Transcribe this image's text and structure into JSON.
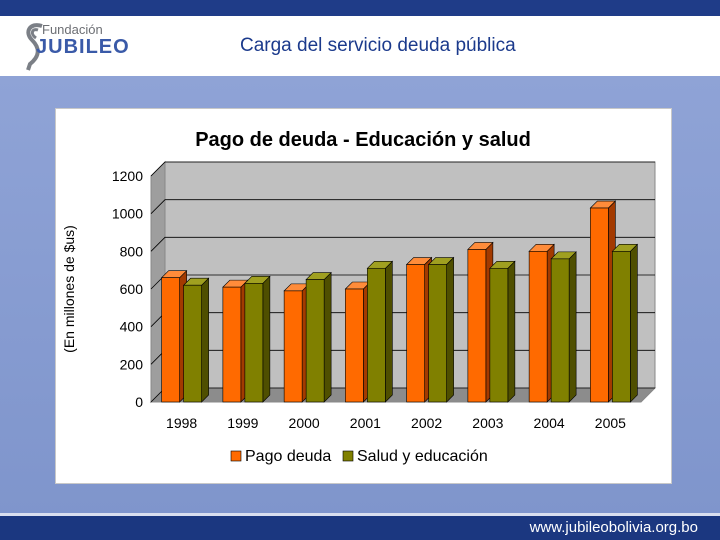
{
  "header": {
    "logo_small": "Fundación",
    "logo_big": "JUBILEO",
    "slide_title": "Carga del servicio deuda pública"
  },
  "footer": {
    "url": "www.jubileobolivia.org.bo"
  },
  "colors": {
    "series1": "#ff6a00",
    "series1_side": "#a33a00",
    "series2": "#808000",
    "series2_side": "#4f4f00",
    "plot_bg": "#c0c0c0",
    "topbar": "#1f3c88"
  },
  "chart_data": {
    "type": "bar",
    "title": "Pago de deuda - Educación y salud",
    "ylabel": "(En millones de $us)",
    "xlabel": "",
    "categories": [
      "1998",
      "1999",
      "2000",
      "2001",
      "2002",
      "2003",
      "2004",
      "2005"
    ],
    "series": [
      {
        "name": "Pago deuda",
        "values": [
          660,
          610,
          590,
          600,
          730,
          810,
          800,
          1030
        ]
      },
      {
        "name": "Salud y educación",
        "values": [
          620,
          630,
          650,
          710,
          730,
          710,
          760,
          800
        ]
      }
    ],
    "ylim": [
      0,
      1200
    ],
    "yticks": [
      "0",
      "200",
      "400",
      "600",
      "800",
      "1000",
      "1200"
    ],
    "grid": true,
    "legend_position": "bottom"
  }
}
